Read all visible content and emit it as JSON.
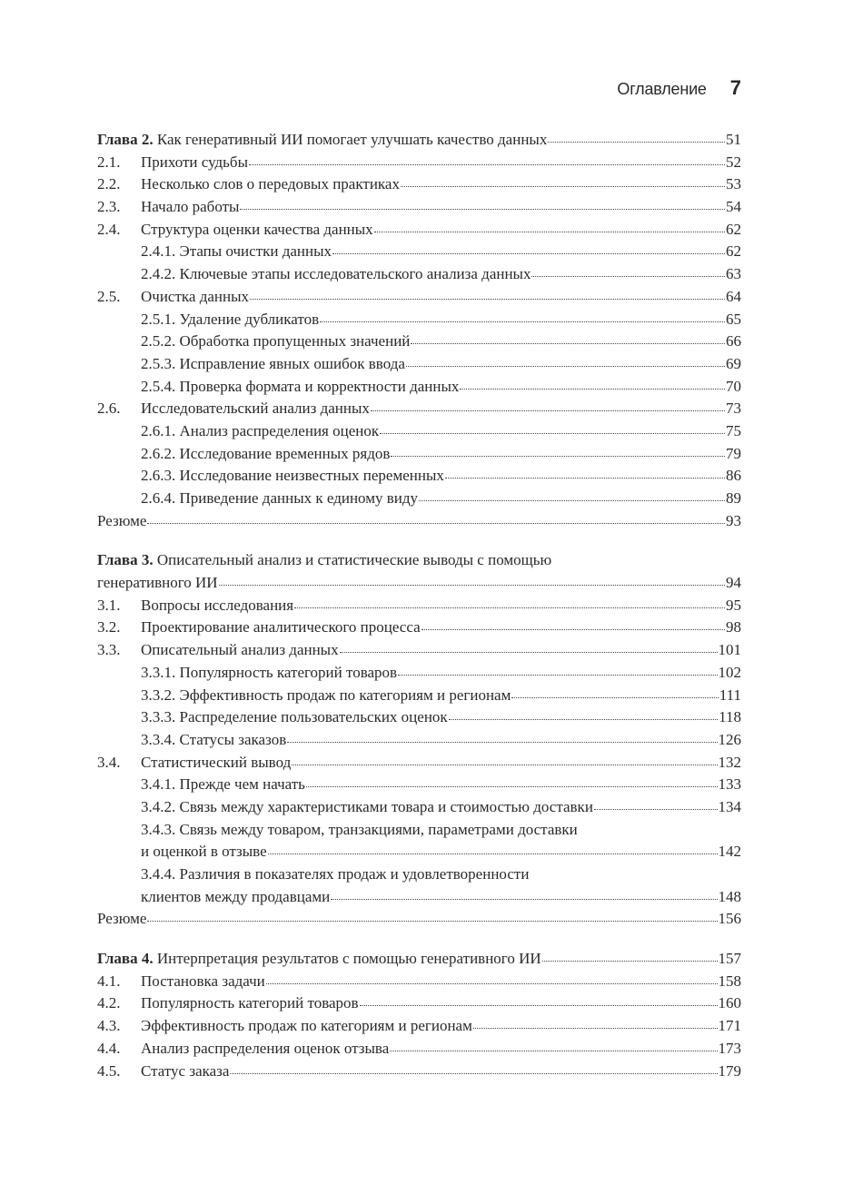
{
  "header": {
    "title": "Оглавление",
    "page_number": "7"
  },
  "chapters": [
    {
      "label": "Глава 2.",
      "title": "Как генеративный ИИ помогает улучшать качество данных",
      "title2": null,
      "page": "51",
      "entries": [
        {
          "num": "2.1.",
          "title": "Прихоти судьбы",
          "page": "52",
          "level": 1
        },
        {
          "num": "2.2.",
          "title": "Несколько слов о передовых практиках",
          "page": "53",
          "level": 1
        },
        {
          "num": "2.3.",
          "title": "Начало работы",
          "page": "54",
          "level": 1
        },
        {
          "num": "2.4.",
          "title": "Структура оценки качества данных",
          "page": "62",
          "level": 1
        },
        {
          "num": "2.4.1.",
          "title": "Этапы очистки данных",
          "page": "62",
          "level": 2
        },
        {
          "num": "2.4.2.",
          "title": "Ключевые этапы исследовательского анализа данных",
          "page": "63",
          "level": 2
        },
        {
          "num": "2.5.",
          "title": "Очистка данных",
          "page": "64",
          "level": 1
        },
        {
          "num": "2.5.1.",
          "title": "Удаление дубликатов",
          "page": "65",
          "level": 2
        },
        {
          "num": "2.5.2.",
          "title": "Обработка пропущенных значений",
          "page": "66",
          "level": 2
        },
        {
          "num": "2.5.3.",
          "title": "Исправление явных ошибок ввода",
          "page": "69",
          "level": 2
        },
        {
          "num": "2.5.4.",
          "title": "Проверка формата и корректности данных",
          "page": "70",
          "level": 2
        },
        {
          "num": "2.6.",
          "title": "Исследовательский анализ данных",
          "page": "73",
          "level": 1
        },
        {
          "num": "2.6.1.",
          "title": "Анализ распределения оценок",
          "page": "75",
          "level": 2
        },
        {
          "num": "2.6.2.",
          "title": "Исследование временных рядов",
          "page": "79",
          "level": 2
        },
        {
          "num": "2.6.3.",
          "title": "Исследование неизвестных переменных",
          "page": "86",
          "level": 2
        },
        {
          "num": "2.6.4.",
          "title": "Приведение данных к единому виду",
          "page": "89",
          "level": 2
        },
        {
          "num": "",
          "title": "Резюме",
          "page": "93",
          "level": 0
        }
      ]
    },
    {
      "label": "Глава 3.",
      "title": "Описательный анализ и статистические выводы с помощью",
      "title2": "генеративного ИИ",
      "page": "94",
      "entries": [
        {
          "num": "3.1.",
          "title": "Вопросы исследования",
          "page": "95",
          "level": 1
        },
        {
          "num": "3.2.",
          "title": "Проектирование аналитического процесса",
          "page": "98",
          "level": 1
        },
        {
          "num": "3.3.",
          "title": "Описательный анализ данных",
          "page": "101",
          "level": 1
        },
        {
          "num": "3.3.1.",
          "title": "Популярность категорий товаров",
          "page": "102",
          "level": 2
        },
        {
          "num": "3.3.2.",
          "title": "Эффективность продаж по категориям и регионам",
          "page": "111",
          "level": 2
        },
        {
          "num": "3.3.3.",
          "title": "Распределение пользовательских оценок",
          "page": "118",
          "level": 2
        },
        {
          "num": "3.3.4.",
          "title": "Статусы заказов",
          "page": "126",
          "level": 2
        },
        {
          "num": "3.4.",
          "title": "Статистический вывод",
          "page": "132",
          "level": 1
        },
        {
          "num": "3.4.1.",
          "title": "Прежде чем начать",
          "page": "133",
          "level": 2
        },
        {
          "num": "3.4.2.",
          "title": "Связь между характеристиками товара и стоимостью доставки",
          "page": "134",
          "level": 2
        },
        {
          "num": "3.4.3.",
          "title": "Связь между товаром, транзакциями, параметрами доставки",
          "title2": "и оценкой в отзыве",
          "page": "142",
          "level": 2
        },
        {
          "num": "3.4.4.",
          "title": "Различия в показателях продаж и удовлетворенности",
          "title2": "клиентов между продавцами",
          "page": "148",
          "level": 2
        },
        {
          "num": "",
          "title": "Резюме",
          "page": "156",
          "level": 0
        }
      ]
    },
    {
      "label": "Глава 4.",
      "title": "Интерпретация результатов с помощью генеративного ИИ",
      "title2": null,
      "page": "157",
      "entries": [
        {
          "num": "4.1.",
          "title": "Постановка задачи",
          "page": "158",
          "level": 1
        },
        {
          "num": "4.2.",
          "title": "Популярность категорий товаров",
          "page": "160",
          "level": 1
        },
        {
          "num": "4.3.",
          "title": "Эффективность продаж по категориям и регионам",
          "page": "171",
          "level": 1
        },
        {
          "num": "4.4.",
          "title": "Анализ распределения оценок отзыва",
          "page": "173",
          "level": 1
        },
        {
          "num": "4.5.",
          "title": "Статус заказа",
          "page": "179",
          "level": 1
        }
      ]
    }
  ]
}
